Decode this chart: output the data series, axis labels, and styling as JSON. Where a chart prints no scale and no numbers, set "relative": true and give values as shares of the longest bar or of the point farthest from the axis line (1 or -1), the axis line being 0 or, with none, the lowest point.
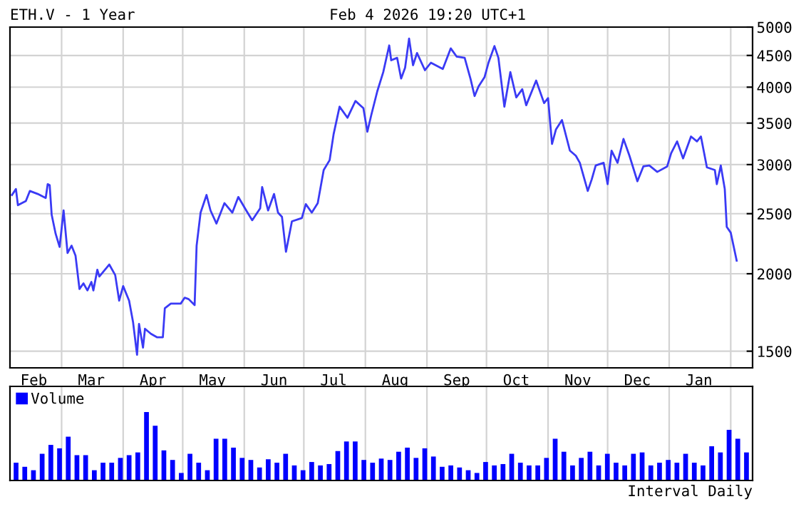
{
  "chart_data": [
    {
      "type": "line",
      "title": "ETH.V - 1 Year",
      "subtitle": "Feb 4 2026 19:20 UTC+1",
      "color": "#3a3af5",
      "log": "y",
      "grid": true,
      "line_style": "solid",
      "x": [
        "2025-02-04",
        "2025-02-06",
        "2025-02-07",
        "2025-02-11",
        "2025-02-13",
        "2025-02-17",
        "2025-02-21",
        "2025-02-22",
        "2025-02-23",
        "2025-02-24",
        "2025-02-26",
        "2025-02-28",
        "2025-03-02",
        "2025-03-04",
        "2025-03-06",
        "2025-03-08",
        "2025-03-10",
        "2025-03-12",
        "2025-03-14",
        "2025-03-16",
        "2025-03-17",
        "2025-03-19",
        "2025-03-20",
        "2025-03-25",
        "2025-03-28",
        "2025-03-30",
        "2025-04-01",
        "2025-04-04",
        "2025-04-06",
        "2025-04-08",
        "2025-04-09",
        "2025-04-11",
        "2025-04-12",
        "2025-04-15",
        "2025-04-18",
        "2025-04-21",
        "2025-04-22",
        "2025-04-25",
        "2025-04-30",
        "2025-05-02",
        "2025-05-04",
        "2025-05-07",
        "2025-05-08",
        "2025-05-10",
        "2025-05-13",
        "2025-05-15",
        "2025-05-18",
        "2025-05-22",
        "2025-05-26",
        "2025-05-29",
        "2025-06-02",
        "2025-06-05",
        "2025-06-09",
        "2025-06-10",
        "2025-06-13",
        "2025-06-16",
        "2025-06-18",
        "2025-06-20",
        "2025-06-22",
        "2025-06-25",
        "2025-06-30",
        "2025-07-02",
        "2025-07-05",
        "2025-07-08",
        "2025-07-11",
        "2025-07-14",
        "2025-07-16",
        "2025-07-19",
        "2025-07-23",
        "2025-07-27",
        "2025-07-31",
        "2025-08-02",
        "2025-08-04",
        "2025-08-07",
        "2025-08-10",
        "2025-08-13",
        "2025-08-14",
        "2025-08-17",
        "2025-08-19",
        "2025-08-21",
        "2025-08-23",
        "2025-08-25",
        "2025-08-27",
        "2025-08-31",
        "2025-09-03",
        "2025-09-09",
        "2025-09-13",
        "2025-09-16",
        "2025-09-20",
        "2025-09-23",
        "2025-09-25",
        "2025-09-27",
        "2025-09-30",
        "2025-10-02",
        "2025-10-05",
        "2025-10-07",
        "2025-10-10",
        "2025-10-13",
        "2025-10-16",
        "2025-10-19",
        "2025-10-21",
        "2025-10-26",
        "2025-10-30",
        "2025-11-01",
        "2025-11-03",
        "2025-11-05",
        "2025-11-08",
        "2025-11-12",
        "2025-11-15",
        "2025-11-17",
        "2025-11-21",
        "2025-11-23",
        "2025-11-25",
        "2025-11-29",
        "2025-12-01",
        "2025-12-03",
        "2025-12-06",
        "2025-12-09",
        "2025-12-12",
        "2025-12-16",
        "2025-12-19",
        "2025-12-22",
        "2025-12-26",
        "2025-12-31",
        "2026-01-02",
        "2026-01-05",
        "2026-01-08",
        "2026-01-12",
        "2026-01-15",
        "2026-01-17",
        "2026-01-20",
        "2026-01-24",
        "2026-01-25",
        "2026-01-27",
        "2026-01-29",
        "2026-01-30",
        "2026-02-01",
        "2026-02-04"
      ],
      "values": [
        2680,
        2740,
        2580,
        2620,
        2720,
        2690,
        2650,
        2790,
        2780,
        2490,
        2320,
        2210,
        2530,
        2160,
        2220,
        2140,
        1890,
        1930,
        1880,
        1940,
        1880,
        2030,
        1980,
        2070,
        1990,
        1810,
        1910,
        1810,
        1670,
        1480,
        1660,
        1520,
        1630,
        1600,
        1580,
        1580,
        1760,
        1790,
        1790,
        1830,
        1820,
        1780,
        2220,
        2510,
        2680,
        2530,
        2410,
        2600,
        2510,
        2660,
        2530,
        2440,
        2550,
        2760,
        2530,
        2690,
        2510,
        2470,
        2170,
        2430,
        2460,
        2590,
        2510,
        2600,
        2940,
        3050,
        3360,
        3720,
        3570,
        3800,
        3700,
        3390,
        3610,
        3940,
        4230,
        4670,
        4420,
        4460,
        4130,
        4300,
        4790,
        4340,
        4540,
        4260,
        4380,
        4280,
        4620,
        4480,
        4460,
        4120,
        3870,
        4010,
        4150,
        4380,
        4660,
        4460,
        3720,
        4230,
        3850,
        3970,
        3740,
        4100,
        3770,
        3840,
        3240,
        3420,
        3540,
        3160,
        3100,
        3020,
        2720,
        2840,
        2990,
        3020,
        2790,
        3160,
        3020,
        3300,
        3100,
        2820,
        2980,
        2990,
        2920,
        2980,
        3130,
        3270,
        3070,
        3330,
        3270,
        3330,
        2970,
        2940,
        2790,
        2990,
        2740,
        2380,
        2330,
        2100
      ],
      "xlim": [
        "2025-02-03",
        "2026-02-12"
      ],
      "xticks": [
        {
          "value": "2025-02-15",
          "label": "Feb"
        },
        {
          "value": "2025-03-01",
          "label": null
        },
        {
          "value": "2025-03-16",
          "label": "Mar"
        },
        {
          "value": "2025-04-01",
          "label": null
        },
        {
          "value": "2025-04-16",
          "label": "Apr"
        },
        {
          "value": "2025-05-01",
          "label": null
        },
        {
          "value": "2025-05-16",
          "label": "May"
        },
        {
          "value": "2025-06-01",
          "label": null
        },
        {
          "value": "2025-06-16",
          "label": "Jun"
        },
        {
          "value": "2025-07-01",
          "label": null
        },
        {
          "value": "2025-07-16",
          "label": "Jul"
        },
        {
          "value": "2025-08-01",
          "label": null
        },
        {
          "value": "2025-08-16",
          "label": "Aug"
        },
        {
          "value": "2025-09-01",
          "label": null
        },
        {
          "value": "2025-09-16",
          "label": "Sep"
        },
        {
          "value": "2025-10-01",
          "label": null
        },
        {
          "value": "2025-10-16",
          "label": "Oct"
        },
        {
          "value": "2025-11-01",
          "label": null
        },
        {
          "value": "2025-11-16",
          "label": "Nov"
        },
        {
          "value": "2025-12-01",
          "label": null
        },
        {
          "value": "2025-12-16",
          "label": "Dec"
        },
        {
          "value": "2026-01-01",
          "label": null
        },
        {
          "value": "2026-01-16",
          "label": "Jan"
        },
        {
          "value": "2026-02-01",
          "label": null
        }
      ],
      "ylim": [
        1410,
        5000
      ],
      "yticks": [
        1500,
        2000,
        2500,
        3000,
        3500,
        4000,
        4500,
        5000
      ]
    },
    {
      "type": "bar",
      "relative": true,
      "grid": "x",
      "legend": "top left",
      "annotations": [
        "Interval Daily"
      ],
      "categories": [
        null,
        null,
        null,
        null,
        null,
        null,
        null,
        null,
        null,
        null,
        null,
        null,
        null,
        null,
        null,
        null,
        null,
        null,
        null,
        null,
        null,
        null,
        null,
        null,
        null,
        null,
        null,
        null,
        null,
        null,
        null,
        null,
        null,
        null,
        null,
        null,
        null,
        null,
        null,
        null,
        null,
        null,
        null,
        null,
        null,
        null,
        null,
        null,
        null,
        null,
        null,
        null,
        null,
        null,
        null,
        null,
        null,
        null,
        null,
        null,
        null,
        null,
        null,
        null,
        null,
        null,
        null,
        null,
        null,
        null,
        null,
        null,
        null,
        null,
        null,
        null,
        null,
        null,
        null,
        null,
        null,
        null,
        null,
        null,
        null
      ],
      "series": [
        {
          "name": "Volume",
          "color": "#0000ff",
          "values": [
            0.26,
            0.2,
            0.15,
            0.39,
            0.52,
            0.47,
            0.64,
            0.37,
            0.37,
            0.15,
            0.26,
            0.26,
            0.33,
            0.37,
            0.41,
            1,
            0.8,
            0.44,
            0.3,
            0.11,
            0.39,
            0.26,
            0.15,
            0.61,
            0.61,
            0.48,
            0.33,
            0.3,
            0.19,
            0.31,
            0.26,
            0.39,
            0.22,
            0.15,
            0.27,
            0.22,
            0.24,
            0.43,
            0.57,
            0.57,
            0.3,
            0.26,
            0.32,
            0.3,
            0.42,
            0.48,
            0.33,
            0.47,
            0.35,
            0.2,
            0.22,
            0.19,
            0.15,
            0.11,
            0.27,
            0.22,
            0.24,
            0.39,
            0.26,
            0.22,
            0.22,
            0.33,
            0.61,
            0.42,
            0.22,
            0.33,
            0.42,
            0.22,
            0.39,
            0.26,
            0.22,
            0.39,
            0.41,
            0.22,
            0.26,
            0.3,
            0.26,
            0.39,
            0.26,
            0.22,
            0.5,
            0.41,
            0.74,
            0.61,
            0.41
          ]
        }
      ]
    }
  ]
}
